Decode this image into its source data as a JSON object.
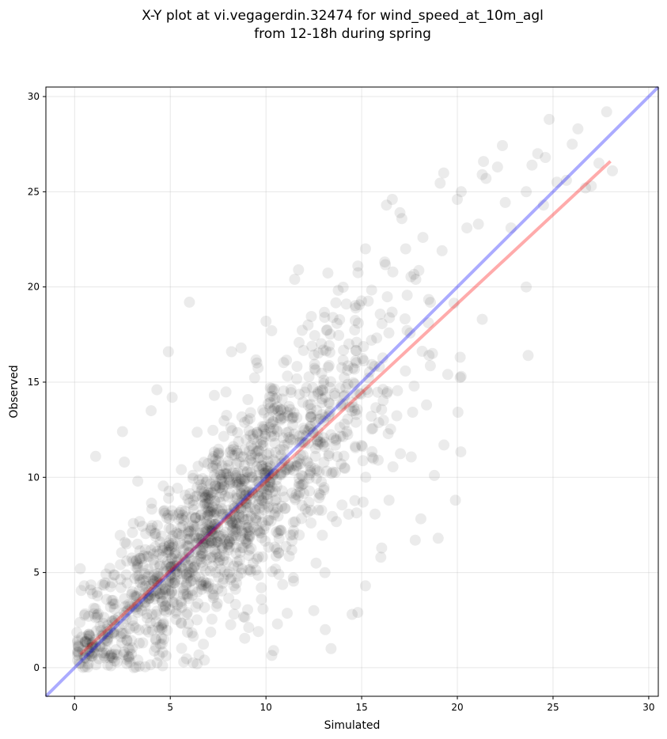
{
  "chart_data": {
    "type": "scatter",
    "title_line1": "X-Y plot at vi.vegagerdin.32474 for wind_speed_at_10m_agl",
    "title_line2": "from 12-18h during spring",
    "xlabel": "Simulated",
    "ylabel": "Observed",
    "xlim": [
      -1.5,
      30.5
    ],
    "ylim": [
      -1.5,
      30.5
    ],
    "xticks": [
      0,
      5,
      10,
      15,
      20,
      25,
      30
    ],
    "yticks": [
      0,
      5,
      10,
      15,
      20,
      25,
      30
    ],
    "grid": true,
    "point_color": "#000000",
    "point_alpha": 0.08,
    "identity_line": {
      "x": [
        -1.5,
        30.5
      ],
      "y": [
        -1.5,
        30.5
      ],
      "color": "#0000ff"
    },
    "fit_line": {
      "x": [
        0.3,
        28.0
      ],
      "y": [
        0.7,
        26.6
      ],
      "color": "#ff0000"
    },
    "cluster": {
      "n": 1500,
      "x_mean": 8.2,
      "x_sd": 4.4,
      "x_min": 0.1,
      "x_max": 28.2,
      "slope": 0.93,
      "intercept": 0.45,
      "noise_sd": 2.3,
      "y_min": 0.0,
      "y_max": 29.2
    },
    "outliers": [
      [
        1.1,
        11.1
      ],
      [
        2.5,
        12.4
      ],
      [
        4.0,
        13.5
      ],
      [
        4.3,
        14.6
      ],
      [
        4.9,
        16.6
      ],
      [
        6.0,
        19.2
      ],
      [
        5.1,
        14.2
      ],
      [
        7.3,
        14.3
      ],
      [
        8.2,
        16.6
      ],
      [
        8.7,
        16.8
      ],
      [
        10.0,
        18.2
      ],
      [
        11.5,
        20.4
      ],
      [
        11.7,
        20.9
      ],
      [
        10.3,
        17.7
      ],
      [
        12.2,
        18.0
      ],
      [
        13.5,
        18.4
      ],
      [
        14.2,
        19.1
      ],
      [
        14.8,
        21.1
      ],
      [
        15.2,
        22.0
      ],
      [
        16.3,
        24.3
      ],
      [
        16.6,
        24.6
      ],
      [
        17.0,
        23.9
      ],
      [
        17.3,
        22.0
      ],
      [
        18.2,
        22.6
      ],
      [
        19.2,
        21.9
      ],
      [
        20.0,
        24.6
      ],
      [
        20.2,
        25.0
      ],
      [
        20.5,
        23.1
      ],
      [
        21.1,
        23.3
      ],
      [
        21.3,
        25.9
      ],
      [
        21.5,
        25.7
      ],
      [
        22.1,
        26.3
      ],
      [
        22.8,
        23.1
      ],
      [
        23.6,
        25.0
      ],
      [
        23.9,
        26.4
      ],
      [
        24.2,
        27.0
      ],
      [
        24.5,
        24.3
      ],
      [
        24.6,
        26.8
      ],
      [
        24.8,
        28.8
      ],
      [
        25.2,
        25.5
      ],
      [
        25.7,
        25.6
      ],
      [
        26.0,
        27.5
      ],
      [
        26.3,
        28.3
      ],
      [
        26.7,
        25.2
      ],
      [
        27.0,
        25.3
      ],
      [
        27.4,
        26.5
      ],
      [
        27.8,
        29.2
      ],
      [
        28.1,
        26.1
      ],
      [
        23.6,
        20.0
      ],
      [
        23.7,
        16.4
      ],
      [
        21.3,
        18.3
      ],
      [
        20.2,
        15.3
      ],
      [
        19.5,
        15.4
      ],
      [
        19.3,
        11.7
      ],
      [
        19.9,
        8.8
      ],
      [
        19.0,
        6.8
      ],
      [
        17.8,
        6.7
      ],
      [
        18.8,
        10.1
      ],
      [
        16.0,
        5.8
      ],
      [
        15.2,
        4.3
      ],
      [
        14.8,
        2.9
      ],
      [
        14.5,
        2.8
      ],
      [
        13.1,
        2.0
      ],
      [
        13.4,
        1.0
      ],
      [
        12.5,
        3.0
      ],
      [
        10.4,
        0.9
      ],
      [
        10.6,
        2.3
      ],
      [
        9.6,
        1.9
      ],
      [
        0.3,
        5.2
      ],
      [
        0.5,
        4.3
      ],
      [
        1.9,
        0.1
      ],
      [
        3.1,
        0.0
      ],
      [
        4.6,
        0.1
      ],
      [
        5.7,
        0.3
      ],
      [
        6.4,
        0.2
      ],
      [
        3.3,
        9.8
      ],
      [
        2.6,
        10.8
      ]
    ]
  }
}
